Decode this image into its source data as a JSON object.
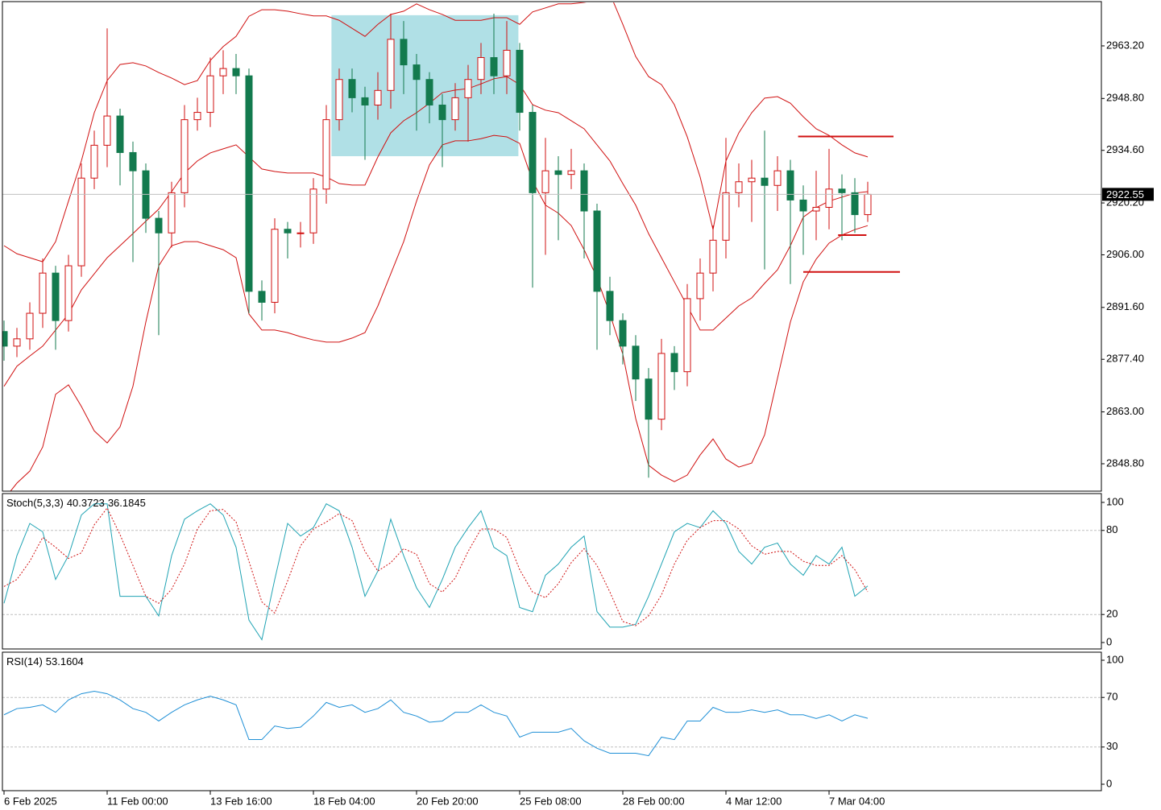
{
  "chart_data": [
    {
      "type": "candlestick",
      "categories": [
        "6 Feb 2025",
        null,
        null,
        null,
        null,
        null,
        null,
        null,
        "11 Feb 00:00",
        null,
        null,
        null,
        null,
        null,
        null,
        null,
        "13 Feb 16:00",
        null,
        null,
        null,
        null,
        null,
        null,
        null,
        "18 Feb 04:00",
        null,
        null,
        null,
        null,
        null,
        null,
        null,
        "20 Feb 20:00",
        null,
        null,
        null,
        null,
        null,
        null,
        null,
        "25 Feb 08:00",
        null,
        null,
        null,
        null,
        null,
        null,
        null,
        "28 Feb 00:00",
        null,
        null,
        null,
        null,
        null,
        null,
        null,
        "4 Mar 12:00",
        null,
        null,
        null,
        null,
        null,
        null,
        null,
        "7 Mar 04:00",
        null,
        null,
        null
      ],
      "open": [
        2885,
        2881,
        2883,
        2890,
        2901,
        2888,
        2903,
        2927,
        2936,
        2944,
        2934,
        2929,
        2916,
        2912,
        2923,
        2943,
        2945,
        2955,
        2957,
        2955,
        2896,
        2893,
        2913,
        2912,
        2912,
        2924,
        2943,
        2954,
        2949,
        2947,
        2951,
        2965,
        2958,
        2954,
        2947,
        2943,
        2949,
        2954,
        2960,
        2955,
        2962,
        2945,
        2923,
        2929,
        2928,
        2929,
        2918,
        2896,
        2888,
        2881,
        2872,
        2861,
        2879,
        2874,
        2894,
        2901,
        2910,
        2923,
        2926,
        2927,
        2925,
        2929,
        2921,
        2918,
        2919,
        2924,
        2923,
        2917
      ],
      "high": [
        2888,
        2886,
        2893,
        2905,
        2903,
        2906,
        2931,
        2940,
        2968,
        2946,
        2937,
        2931,
        2918,
        2926,
        2947,
        2949,
        2960,
        2962,
        2961,
        2957,
        2899,
        2916,
        2915,
        2915,
        2927,
        2947,
        2957,
        2957,
        2952,
        2956,
        2972,
        2970,
        2961,
        2956,
        2950,
        2953,
        2958,
        2964,
        2972,
        2970,
        2964,
        2947,
        2938,
        2933,
        2935,
        2931,
        2920,
        2900,
        2890,
        2884,
        2875,
        2883,
        2881,
        2898,
        2905,
        2914,
        2938,
        2931,
        2932,
        2940,
        2933,
        2932,
        2925,
        2929,
        2935,
        2928,
        2927,
        2926
      ],
      "low": [
        2877,
        2878,
        2880,
        2886,
        2880,
        2885,
        2900,
        2924,
        2930,
        2925,
        2904,
        2912,
        2884,
        2908,
        2919,
        2940,
        2941,
        2950,
        2950,
        2890,
        2888,
        2890,
        2905,
        2908,
        2909,
        2920,
        2940,
        2945,
        2932,
        2943,
        2946,
        2950,
        2940,
        2942,
        2930,
        2940,
        2937,
        2950,
        2950,
        2950,
        2940,
        2897,
        2906,
        2910,
        2924,
        2905,
        2880,
        2884,
        2876,
        2866,
        2845,
        2858,
        2869,
        2870,
        2888,
        2896,
        2905,
        2919,
        2915,
        2902,
        2918,
        2898,
        2906,
        2910,
        2913,
        2910,
        2912,
        2915
      ],
      "close": [
        2881,
        2883,
        2890,
        2901,
        2888,
        2903,
        2927,
        2936,
        2944,
        2934,
        2929,
        2916,
        2912,
        2923,
        2943,
        2945,
        2955,
        2957,
        2955,
        2896,
        2893,
        2913,
        2912,
        2912,
        2924,
        2943,
        2954,
        2949,
        2947,
        2951,
        2965,
        2958,
        2954,
        2947,
        2943,
        2949,
        2954,
        2960,
        2955,
        2962,
        2945,
        2923,
        2929,
        2928,
        2929,
        2918,
        2896,
        2888,
        2881,
        2872,
        2861,
        2879,
        2874,
        2894,
        2901,
        2910,
        2923,
        2926,
        2927,
        2925,
        2929,
        2921,
        2918,
        2919,
        2924,
        2923,
        2917,
        2922.55
      ],
      "bull_color": "#d01010",
      "bear_color": "#137a4e",
      "bands": {
        "color": "#d01010",
        "upper": [
          2908.5,
          2906.3,
          2905.2,
          2904.1,
          2909.6,
          2920.7,
          2931.7,
          2944.9,
          2953.7,
          2958.1,
          2958.6,
          2957.7,
          2955.9,
          2954.4,
          2952.6,
          2953.7,
          2959.2,
          2963.0,
          2965.8,
          2971.3,
          2973.1,
          2973.1,
          2972.7,
          2972.0,
          2971.4,
          2971.4,
          2970.2,
          2968.0,
          2965.8,
          2969.1,
          2971.8,
          2972.7,
          2974.7,
          2973.1,
          2971.8,
          2970.2,
          2970.2,
          2970.2,
          2970.9,
          2970.9,
          2969.1,
          2972.5,
          2973.6,
          2974.7,
          2974.7,
          2975.1,
          2975.7,
          2977.5,
          2969.1,
          2960.3,
          2954.8,
          2952.6,
          2947.1,
          2938.3,
          2927.3,
          2912.9,
          2931.7,
          2939.4,
          2944.9,
          2948.9,
          2949.3,
          2947.5,
          2943.8,
          2940.5,
          2938.7,
          2936.1,
          2933.9,
          2932.8
        ],
        "middle": [
          2870.0,
          2875.5,
          2878.3,
          2881.0,
          2885.4,
          2889.8,
          2896.4,
          2900.8,
          2905.2,
          2908.5,
          2911.8,
          2915.2,
          2918.5,
          2923.3,
          2928.4,
          2931.7,
          2933.9,
          2935.0,
          2936.1,
          2932.8,
          2929.5,
          2928.8,
          2928.4,
          2928.4,
          2928.4,
          2927.3,
          2925.5,
          2925.1,
          2925.1,
          2932.8,
          2939.4,
          2942.7,
          2944.9,
          2947.5,
          2950.4,
          2951.1,
          2951.5,
          2952.8,
          2954.2,
          2954.8,
          2952.6,
          2947.1,
          2945.6,
          2944.9,
          2942.7,
          2940.5,
          2936.1,
          2931.7,
          2925.5,
          2919.6,
          2911.8,
          2905.2,
          2898.6,
          2892.0,
          2885.4,
          2885.4,
          2888.7,
          2892.0,
          2894.2,
          2898.2,
          2901.9,
          2908.5,
          2916.3,
          2918.9,
          2920.7,
          2921.8,
          2922.9,
          2923.3
        ],
        "lower": [
          2839.1,
          2843.5,
          2846.8,
          2853.4,
          2867.8,
          2870.4,
          2864.5,
          2857.8,
          2854.5,
          2858.9,
          2870.0,
          2887.6,
          2903.0,
          2908.5,
          2909.6,
          2909.6,
          2908.5,
          2907.4,
          2905.2,
          2889.8,
          2885.4,
          2885.4,
          2884.7,
          2883.6,
          2882.7,
          2882.1,
          2882.1,
          2883.2,
          2884.7,
          2892.0,
          2900.8,
          2909.6,
          2920.7,
          2930.6,
          2936.1,
          2937.2,
          2937.2,
          2937.8,
          2938.7,
          2938.3,
          2936.5,
          2926.2,
          2919.6,
          2917.4,
          2914.0,
          2907.4,
          2899.7,
          2889.8,
          2878.8,
          2861.2,
          2848.4,
          2845.7,
          2843.9,
          2845.7,
          2851.2,
          2855.6,
          2850.1,
          2847.9,
          2849.0,
          2856.7,
          2872.2,
          2887.6,
          2898.6,
          2904.8,
          2909.2,
          2911.4,
          2912.9,
          2914.0
        ]
      },
      "zone": {
        "start": 25.4,
        "end": 39.9,
        "top": 2971.6,
        "bottom": 2933.0,
        "color": "#b0e0e6"
      },
      "levels": [
        {
          "price": 2938.4,
          "start": 61.6,
          "end": 69,
          "color": "#d01010"
        },
        {
          "price": 2911.4,
          "start": 64.7,
          "end": 66.9,
          "color": "#d01010"
        },
        {
          "price": 2901.3,
          "start": 62.0,
          "end": 69.5,
          "color": "#d01010"
        }
      ],
      "ylim": [
        2841.3,
        2975.76
      ],
      "yticks": [
        {
          "value": 2963.2,
          "label": "2963.20"
        },
        {
          "value": 2948.8,
          "label": "2948.80"
        },
        {
          "value": 2934.6,
          "label": "2934.60"
        },
        {
          "value": 2920.2,
          "label": "2920.20"
        },
        {
          "value": 2906.0,
          "label": "2906.00"
        },
        {
          "value": 2891.6,
          "label": "2891.60"
        },
        {
          "value": 2877.4,
          "label": "2877.40"
        },
        {
          "value": 2863.0,
          "label": "2863.00"
        },
        {
          "value": 2848.8,
          "label": "2848.80"
        }
      ]
    },
    {
      "type": "line",
      "title": "Stoch(5,3,3)",
      "series": [
        {
          "color": "#1fa3b3",
          "dash": false,
          "values": [
            28,
            62,
            85,
            79,
            45,
            62,
            91,
            99,
            99,
            33,
            33,
            33,
            19,
            62,
            88,
            94,
            99,
            91,
            68,
            16,
            2,
            45,
            85,
            76,
            82,
            99,
            94,
            68,
            33,
            51,
            88,
            62,
            39,
            25,
            45,
            68,
            82,
            94,
            68,
            62,
            25,
            22,
            48,
            56,
            68,
            76,
            22,
            11,
            11,
            13,
            33,
            56,
            79,
            85,
            82,
            94,
            85,
            65,
            56,
            68,
            71,
            56,
            48,
            62,
            56,
            68,
            33,
            40.3723
          ]
        },
        {
          "color": "#d01010",
          "dash": true,
          "values": [
            40,
            45,
            58,
            75,
            68,
            60,
            64,
            84,
            96,
            77,
            55,
            33,
            28,
            38,
            56,
            81,
            94,
            95,
            86,
            58,
            29,
            21,
            44,
            69,
            81,
            86,
            92,
            87,
            65,
            51,
            57,
            67,
            63,
            42,
            36,
            46,
            65,
            81,
            81,
            75,
            52,
            36,
            32,
            42,
            57,
            67,
            55,
            36,
            15,
            12,
            19,
            34,
            56,
            73,
            82,
            87,
            87,
            81,
            69,
            63,
            65,
            65,
            58,
            55,
            55,
            62,
            52,
            36.1845
          ]
        }
      ],
      "ylim": [
        -4.6,
        106.3
      ],
      "yticks": [
        0,
        20,
        80,
        100
      ],
      "levels": [
        20,
        80
      ]
    },
    {
      "type": "line",
      "title": "RSI(14)",
      "series": [
        {
          "color": "#1e8fd6",
          "dash": false,
          "values": [
            56,
            61,
            62,
            64,
            58,
            68,
            73,
            75,
            73,
            68,
            61,
            58,
            51,
            58,
            64,
            68,
            71,
            68,
            64,
            36,
            36,
            47,
            45,
            46,
            55,
            66,
            62,
            64,
            58,
            61,
            68,
            58,
            55,
            50,
            51,
            58,
            58,
            64,
            58,
            55,
            38,
            42,
            42,
            42,
            45,
            35,
            29,
            25,
            25,
            25,
            23,
            38,
            36,
            51,
            51,
            62,
            58,
            58,
            60,
            58,
            60,
            56,
            56,
            53,
            56,
            51,
            56,
            53.1604
          ]
        }
      ],
      "ylim": [
        -5.2,
        106.5
      ],
      "yticks": [
        0,
        30,
        70,
        100
      ],
      "levels": [
        30,
        70
      ]
    }
  ]
}
